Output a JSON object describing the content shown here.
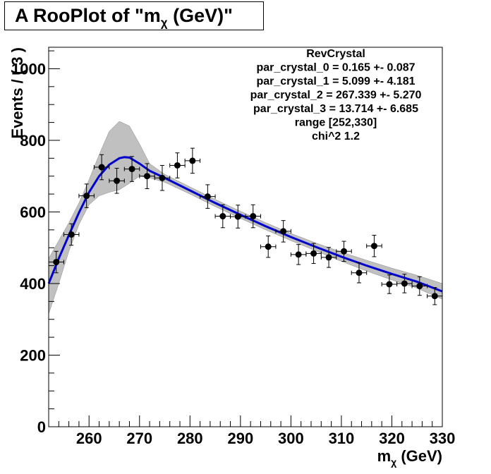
{
  "title": {
    "prefix": "A RooPlot of \"m",
    "subscript": "χ",
    "suffix": " (GeV)\""
  },
  "chart_data": {
    "type": "scatter",
    "xlabel_main": "m",
    "xlabel_sub": "χ",
    "xlabel_unit": " (GeV)",
    "ylabel": "Events / ( 3 )",
    "xlim": [
      252,
      330
    ],
    "ylim": [
      0,
      1060
    ],
    "x_ticks": [
      260,
      270,
      280,
      290,
      300,
      310,
      320,
      330
    ],
    "y_ticks": [
      0,
      200,
      400,
      600,
      800,
      1000
    ],
    "grid": false,
    "points": [
      {
        "x": 253.5,
        "y": 460,
        "err": 30
      },
      {
        "x": 256.5,
        "y": 537,
        "err": 30
      },
      {
        "x": 259.5,
        "y": 645,
        "err": 33
      },
      {
        "x": 262.5,
        "y": 725,
        "err": 35
      },
      {
        "x": 265.5,
        "y": 687,
        "err": 35
      },
      {
        "x": 268.5,
        "y": 720,
        "err": 35
      },
      {
        "x": 271.5,
        "y": 700,
        "err": 35
      },
      {
        "x": 274.5,
        "y": 695,
        "err": 35
      },
      {
        "x": 277.5,
        "y": 730,
        "err": 35
      },
      {
        "x": 280.5,
        "y": 743,
        "err": 35
      },
      {
        "x": 283.5,
        "y": 643,
        "err": 33
      },
      {
        "x": 286.5,
        "y": 588,
        "err": 32
      },
      {
        "x": 289.5,
        "y": 587,
        "err": 32
      },
      {
        "x": 292.5,
        "y": 588,
        "err": 32
      },
      {
        "x": 295.5,
        "y": 503,
        "err": 30
      },
      {
        "x": 298.5,
        "y": 546,
        "err": 30
      },
      {
        "x": 301.5,
        "y": 481,
        "err": 28
      },
      {
        "x": 304.5,
        "y": 484,
        "err": 28
      },
      {
        "x": 307.5,
        "y": 473,
        "err": 28
      },
      {
        "x": 310.5,
        "y": 490,
        "err": 28
      },
      {
        "x": 313.5,
        "y": 430,
        "err": 28
      },
      {
        "x": 316.5,
        "y": 505,
        "err": 30
      },
      {
        "x": 319.5,
        "y": 398,
        "err": 26
      },
      {
        "x": 322.5,
        "y": 400,
        "err": 26
      },
      {
        "x": 325.5,
        "y": 393,
        "err": 26
      },
      {
        "x": 328.5,
        "y": 365,
        "err": 24
      }
    ],
    "fit_curve": [
      {
        "x": 252,
        "y": 400
      },
      {
        "x": 254,
        "y": 470
      },
      {
        "x": 256,
        "y": 535
      },
      {
        "x": 258,
        "y": 598
      },
      {
        "x": 260,
        "y": 655
      },
      {
        "x": 262,
        "y": 700
      },
      {
        "x": 264,
        "y": 732
      },
      {
        "x": 266,
        "y": 750
      },
      {
        "x": 267,
        "y": 753
      },
      {
        "x": 268,
        "y": 752
      },
      {
        "x": 270,
        "y": 735
      },
      {
        "x": 272,
        "y": 715
      },
      {
        "x": 275,
        "y": 695
      },
      {
        "x": 280,
        "y": 660
      },
      {
        "x": 285,
        "y": 625
      },
      {
        "x": 290,
        "y": 592
      },
      {
        "x": 295,
        "y": 560
      },
      {
        "x": 300,
        "y": 530
      },
      {
        "x": 305,
        "y": 502
      },
      {
        "x": 310,
        "y": 475
      },
      {
        "x": 315,
        "y": 450
      },
      {
        "x": 320,
        "y": 427
      },
      {
        "x": 325,
        "y": 405
      },
      {
        "x": 330,
        "y": 378
      }
    ],
    "band_upper": [
      {
        "x": 252,
        "y": 470
      },
      {
        "x": 254,
        "y": 520
      },
      {
        "x": 256,
        "y": 570
      },
      {
        "x": 258,
        "y": 625
      },
      {
        "x": 260,
        "y": 690
      },
      {
        "x": 262,
        "y": 760
      },
      {
        "x": 264,
        "y": 825
      },
      {
        "x": 266,
        "y": 853
      },
      {
        "x": 268,
        "y": 840
      },
      {
        "x": 270,
        "y": 790
      },
      {
        "x": 272,
        "y": 735
      },
      {
        "x": 275,
        "y": 705
      },
      {
        "x": 280,
        "y": 670
      },
      {
        "x": 285,
        "y": 635
      },
      {
        "x": 290,
        "y": 602
      },
      {
        "x": 295,
        "y": 570
      },
      {
        "x": 300,
        "y": 540
      },
      {
        "x": 305,
        "y": 513
      },
      {
        "x": 310,
        "y": 488
      },
      {
        "x": 315,
        "y": 465
      },
      {
        "x": 320,
        "y": 443
      },
      {
        "x": 325,
        "y": 423
      },
      {
        "x": 330,
        "y": 400
      }
    ],
    "band_lower": [
      {
        "x": 252,
        "y": 315
      },
      {
        "x": 254,
        "y": 400
      },
      {
        "x": 256,
        "y": 490
      },
      {
        "x": 258,
        "y": 565
      },
      {
        "x": 260,
        "y": 620
      },
      {
        "x": 262,
        "y": 645
      },
      {
        "x": 264,
        "y": 655
      },
      {
        "x": 266,
        "y": 662
      },
      {
        "x": 268,
        "y": 680
      },
      {
        "x": 270,
        "y": 700
      },
      {
        "x": 272,
        "y": 695
      },
      {
        "x": 275,
        "y": 683
      },
      {
        "x": 280,
        "y": 650
      },
      {
        "x": 285,
        "y": 615
      },
      {
        "x": 290,
        "y": 582
      },
      {
        "x": 295,
        "y": 550
      },
      {
        "x": 300,
        "y": 520
      },
      {
        "x": 305,
        "y": 491
      },
      {
        "x": 310,
        "y": 462
      },
      {
        "x": 315,
        "y": 435
      },
      {
        "x": 320,
        "y": 410
      },
      {
        "x": 325,
        "y": 387
      },
      {
        "x": 330,
        "y": 356
      }
    ],
    "fit_color": "#0000cc",
    "band_color": "#b0b0b0",
    "marker_color": "#000000",
    "legend_position": "top-right",
    "annotations": [
      "RevCrystal",
      "par_crystal_0 = 0.165 +- 0.087",
      "par_crystal_1 = 5.099 +- 4.181",
      "par_crystal_2 = 267.339 +- 5.270",
      "par_crystal_3 = 13.714 +- 6.685",
      "range [252,330]",
      "chi^2 1.2"
    ]
  }
}
